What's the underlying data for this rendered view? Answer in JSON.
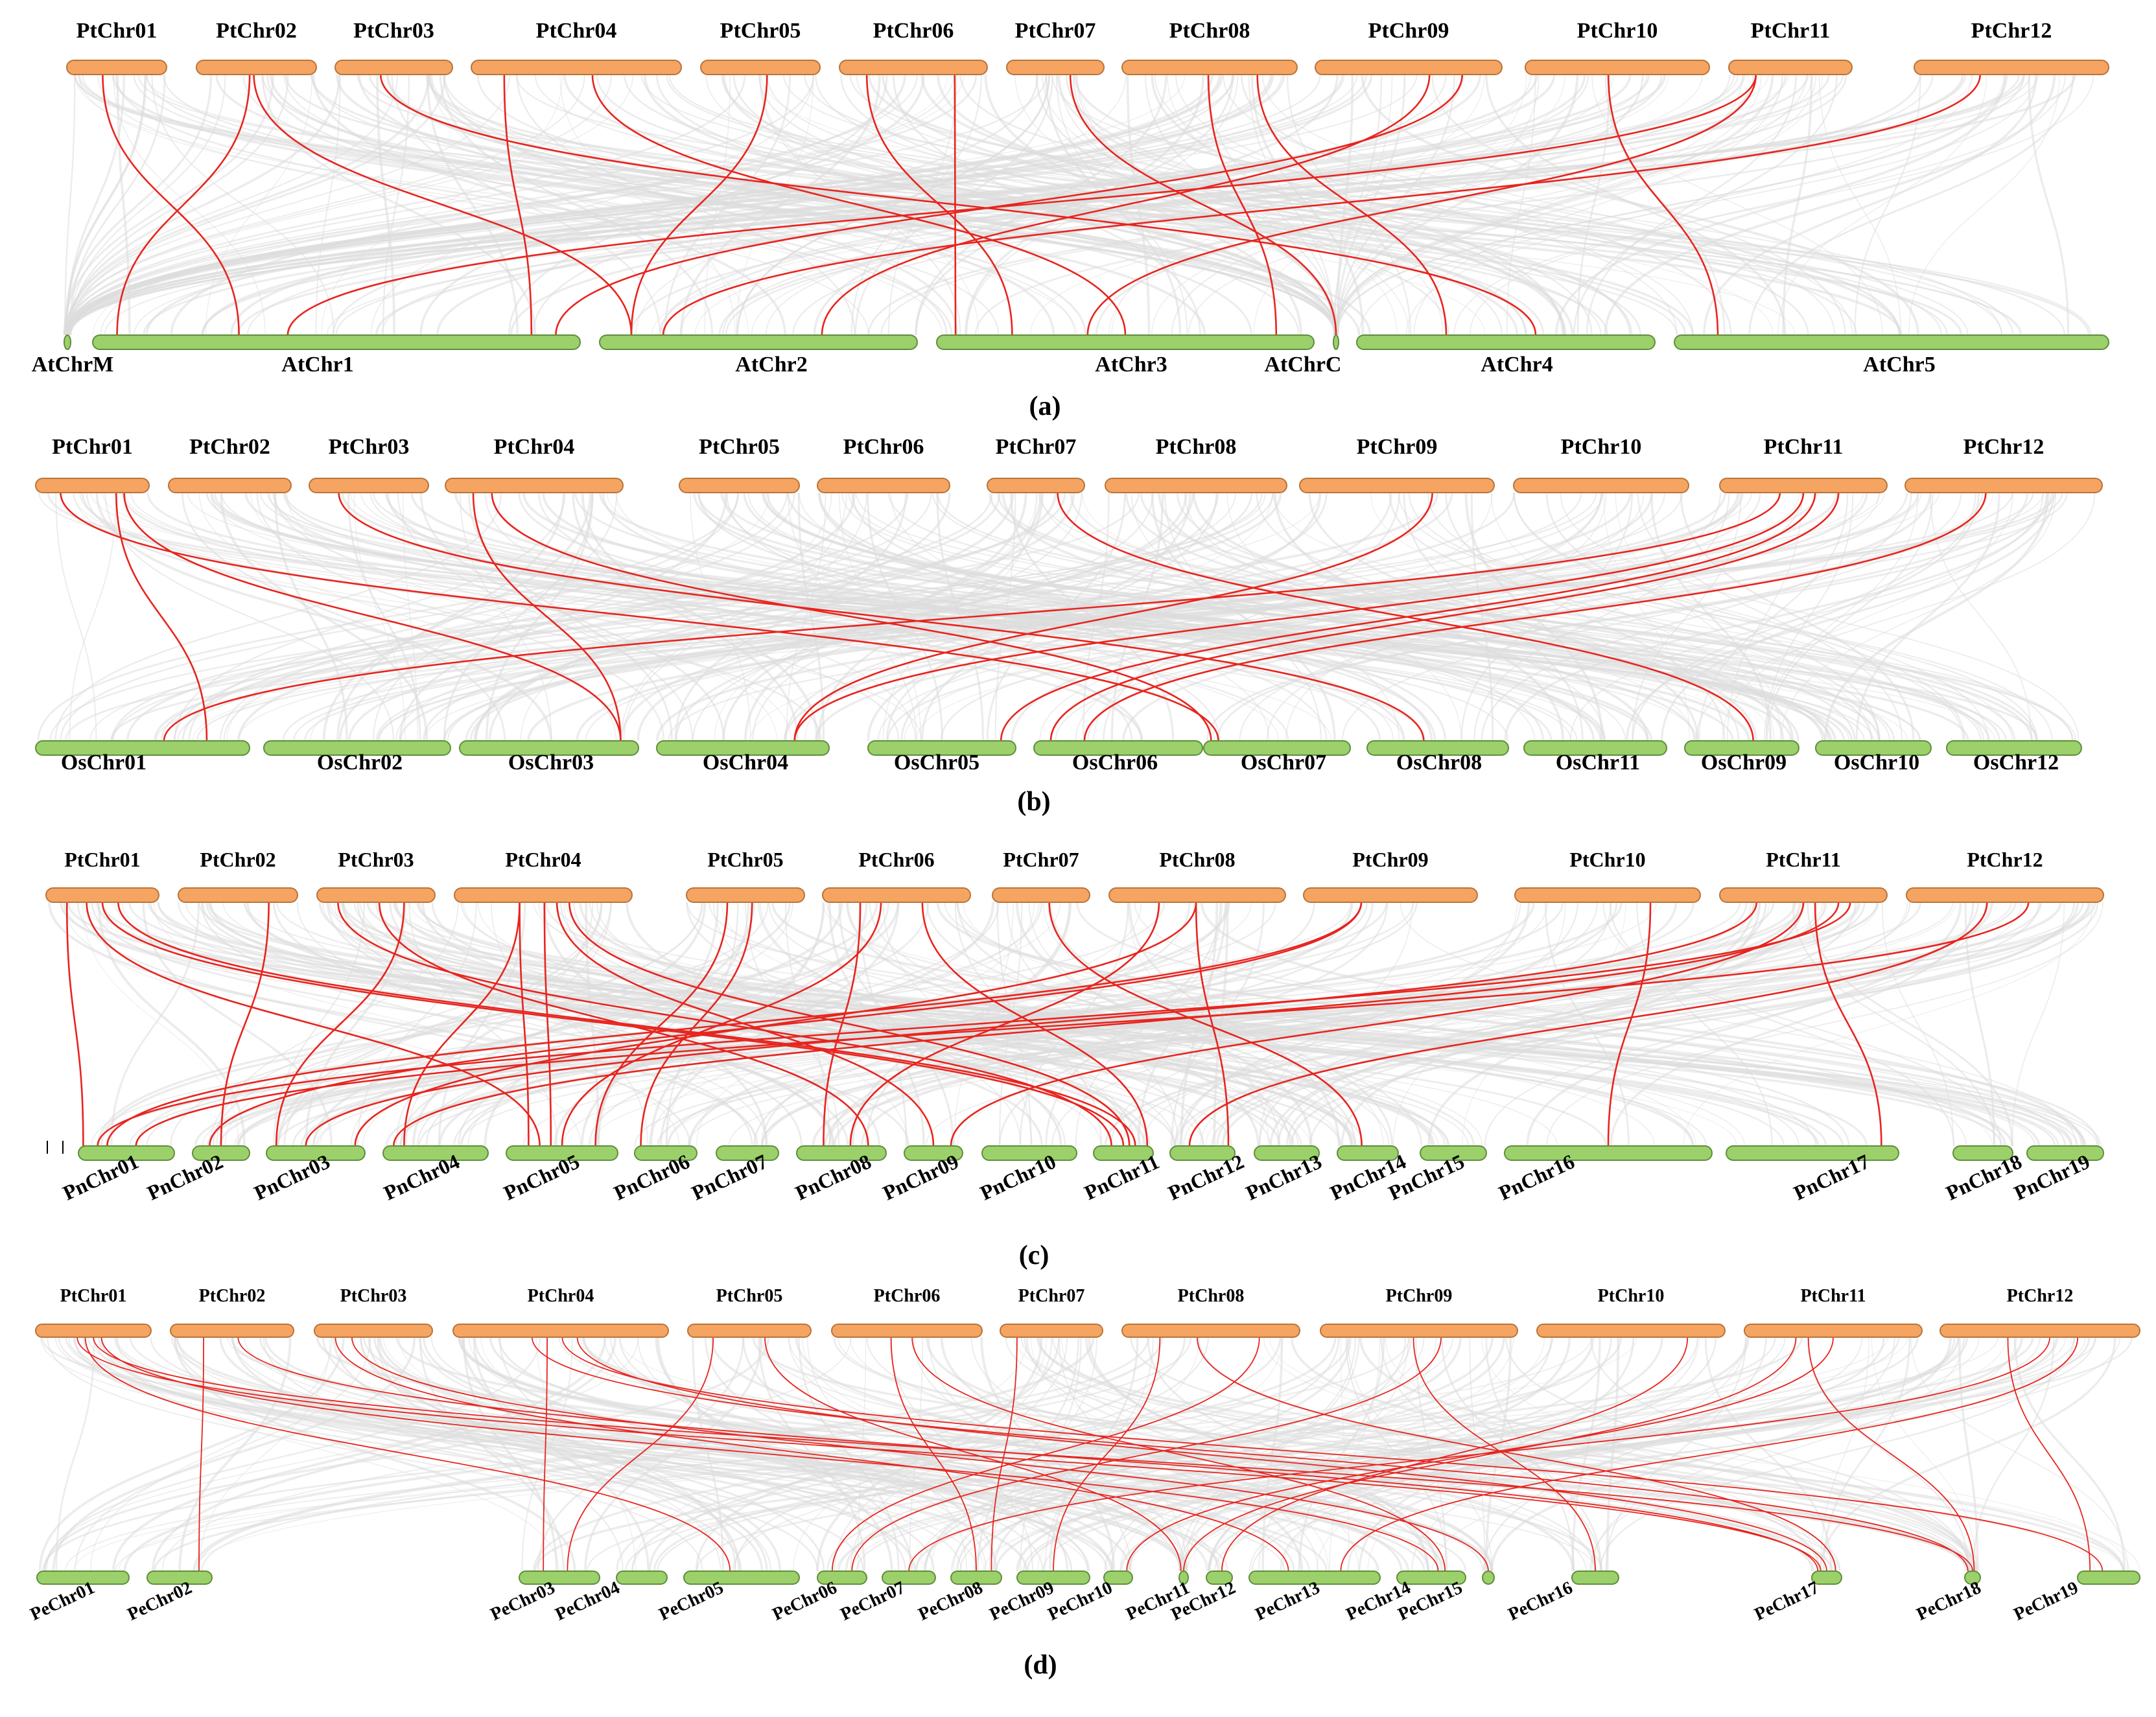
{
  "figure": {
    "colors": {
      "top_chromosome": "#F5A462",
      "top_chromosome_stroke": "#B8743A",
      "bottom_chromosome": "#9CD06A",
      "bottom_chromosome_stroke": "#5E8E3C",
      "background_link": "#DCDCDC",
      "syntenic_link": "#E8241E"
    },
    "panels": [
      {
        "label": "(a)",
        "top": [
          "PtChr01",
          "PtChr02",
          "PtChr03",
          "PtChr04",
          "PtChr05",
          "PtChr06",
          "PtChr07",
          "PtChr08",
          "PtChr09",
          "PtChr10",
          "PtChr11",
          "PtChr12"
        ],
        "bottom": [
          "AtChrM",
          "AtChr1",
          "AtChr2",
          "AtChr3",
          "AtChrC",
          "AtChr4",
          "AtChr5"
        ],
        "links": [
          [
            0,
            1,
            0.3
          ],
          [
            1,
            1,
            0.05
          ],
          [
            1,
            2,
            0.1
          ],
          [
            3,
            1,
            0.9
          ],
          [
            3,
            3,
            0.5
          ],
          [
            4,
            2,
            0.1
          ],
          [
            5,
            3,
            0.2
          ],
          [
            5,
            3,
            0.05
          ],
          [
            7,
            3,
            0.9
          ],
          [
            7,
            5,
            0.3
          ],
          [
            8,
            1,
            0.95
          ],
          [
            8,
            2,
            0.7
          ],
          [
            10,
            1,
            0.4
          ],
          [
            10,
            3,
            0.4
          ],
          [
            11,
            2,
            0.2
          ],
          [
            2,
            5,
            0.6
          ],
          [
            9,
            6,
            0.1
          ],
          [
            6,
            4,
            0.5
          ]
        ]
      },
      {
        "label": "(b)",
        "top": [
          "PtChr01",
          "PtChr02",
          "PtChr03",
          "PtChr04",
          "PtChr05",
          "PtChr06",
          "PtChr07",
          "PtChr08",
          "PtChr09",
          "PtChr10",
          "PtChr11",
          "PtChr12"
        ],
        "bottom": [
          "OsChr01",
          "OsChr02",
          "OsChr03",
          "OsChr04",
          "OsChr05",
          "OsChr06",
          "OsChr07",
          "OsChr08",
          "OsChr11",
          "OsChr09",
          "OsChr10",
          "OsChr12"
        ],
        "links": [
          [
            0,
            0,
            0.8
          ],
          [
            0,
            2,
            0.9
          ],
          [
            0,
            6,
            0.1
          ],
          [
            3,
            2,
            0.9
          ],
          [
            3,
            6,
            0.05
          ],
          [
            8,
            3,
            0.8
          ],
          [
            10,
            0,
            0.6
          ],
          [
            10,
            3,
            0.8
          ],
          [
            10,
            4,
            0.9
          ],
          [
            10,
            5,
            0.1
          ],
          [
            11,
            5,
            0.3
          ],
          [
            2,
            7,
            0.4
          ],
          [
            6,
            9,
            0.6
          ]
        ]
      },
      {
        "label": "(c)",
        "top": [
          "PtChr01",
          "PtChr02",
          "PtChr03",
          "PtChr04",
          "PtChr05",
          "PtChr06",
          "PtChr07",
          "PtChr08",
          "PtChr09",
          "PtChr10",
          "PtChr11",
          "PtChr12"
        ],
        "bottom": [
          "PnChr01",
          "PnChr02",
          "PnChr03",
          "PnChr04",
          "PnChr05",
          "PnChr06",
          "PnChr07",
          "PnChr08",
          "PnChr09",
          "PnChr10",
          "PnChr11",
          "PnChr12",
          "PnChr13",
          "PnChr14",
          "PnChr15",
          "PnChr16",
          "PnChr17",
          "PnChr18",
          "PnChr19"
        ],
        "links": [
          [
            0,
            0,
            0.05
          ],
          [
            0,
            4,
            0.3
          ],
          [
            0,
            10,
            0.5
          ],
          [
            0,
            10,
            0.7
          ],
          [
            1,
            1,
            0.5
          ],
          [
            2,
            2,
            0.1
          ],
          [
            2,
            7,
            0.8
          ],
          [
            2,
            10,
            0.3
          ],
          [
            3,
            4,
            0.4
          ],
          [
            3,
            4,
            0.2
          ],
          [
            3,
            10,
            0.6
          ],
          [
            3,
            8,
            0.5
          ],
          [
            3,
            3,
            0.2
          ],
          [
            4,
            5,
            0.1
          ],
          [
            4,
            4,
            0.8
          ],
          [
            5,
            4,
            0.5
          ],
          [
            5,
            7,
            0.3
          ],
          [
            5,
            10,
            0.9
          ],
          [
            7,
            11,
            0.9
          ],
          [
            7,
            7,
            0.6
          ],
          [
            7,
            2,
            0.9
          ],
          [
            8,
            1,
            0.3
          ],
          [
            8,
            0,
            0.3
          ],
          [
            10,
            0,
            0.2
          ],
          [
            10,
            2,
            0.4
          ],
          [
            10,
            3,
            0.1
          ],
          [
            10,
            16,
            0.9
          ],
          [
            11,
            0,
            0.6
          ],
          [
            11,
            11,
            0.3
          ],
          [
            10,
            8,
            0.8
          ],
          [
            6,
            13,
            0.4
          ],
          [
            9,
            15,
            0.5
          ]
        ]
      },
      {
        "label": "(d)",
        "top": [
          "PtChr01",
          "PtChr02",
          "PtChr03",
          "PtChr04",
          "PtChr05",
          "PtChr06",
          "PtChr07",
          "PtChr08",
          "PtChr09",
          "PtChr10",
          "PtChr11",
          "PtChr12"
        ],
        "bottom": [
          "PeChr01",
          "PeChr02",
          "PeChr03",
          "PeChr04",
          "PeChr05",
          "PeChr06",
          "PeChr07",
          "PeChr08",
          "PeChr09",
          "PeChr10",
          "PeChr11",
          "PeChr12",
          "PeChr13",
          "PeChr14",
          "PeChr15",
          "PeChr16",
          "PeChr17",
          "PeChr18",
          "PeChr19"
        ],
        "links": [
          [
            0,
            16,
            0.3
          ],
          [
            0,
            17,
            0.5
          ],
          [
            0,
            13,
            0.6
          ],
          [
            1,
            1,
            0.8
          ],
          [
            1,
            16,
            0.2
          ],
          [
            2,
            14,
            0.5
          ],
          [
            2,
            12,
            0.3
          ],
          [
            3,
            2,
            0.3
          ],
          [
            3,
            16,
            0.5
          ],
          [
            3,
            17,
            0.2
          ],
          [
            3,
            18,
            0.4
          ],
          [
            4,
            2,
            0.6
          ],
          [
            4,
            10,
            0.2
          ],
          [
            5,
            7,
            0.5
          ],
          [
            5,
            13,
            0.7
          ],
          [
            6,
            7,
            0.8
          ],
          [
            7,
            5,
            0.3
          ],
          [
            7,
            8,
            0.5
          ],
          [
            7,
            16,
            0.8
          ],
          [
            8,
            15,
            0.5
          ],
          [
            8,
            5,
            0.7
          ],
          [
            10,
            9,
            0.8
          ],
          [
            10,
            10,
            0.5
          ],
          [
            10,
            17,
            0.6
          ],
          [
            11,
            18,
            0.2
          ],
          [
            11,
            6,
            0.5
          ],
          [
            11,
            12,
            0.7
          ],
          [
            9,
            11,
            0.6
          ],
          [
            0,
            4,
            0.4
          ]
        ]
      }
    ]
  }
}
